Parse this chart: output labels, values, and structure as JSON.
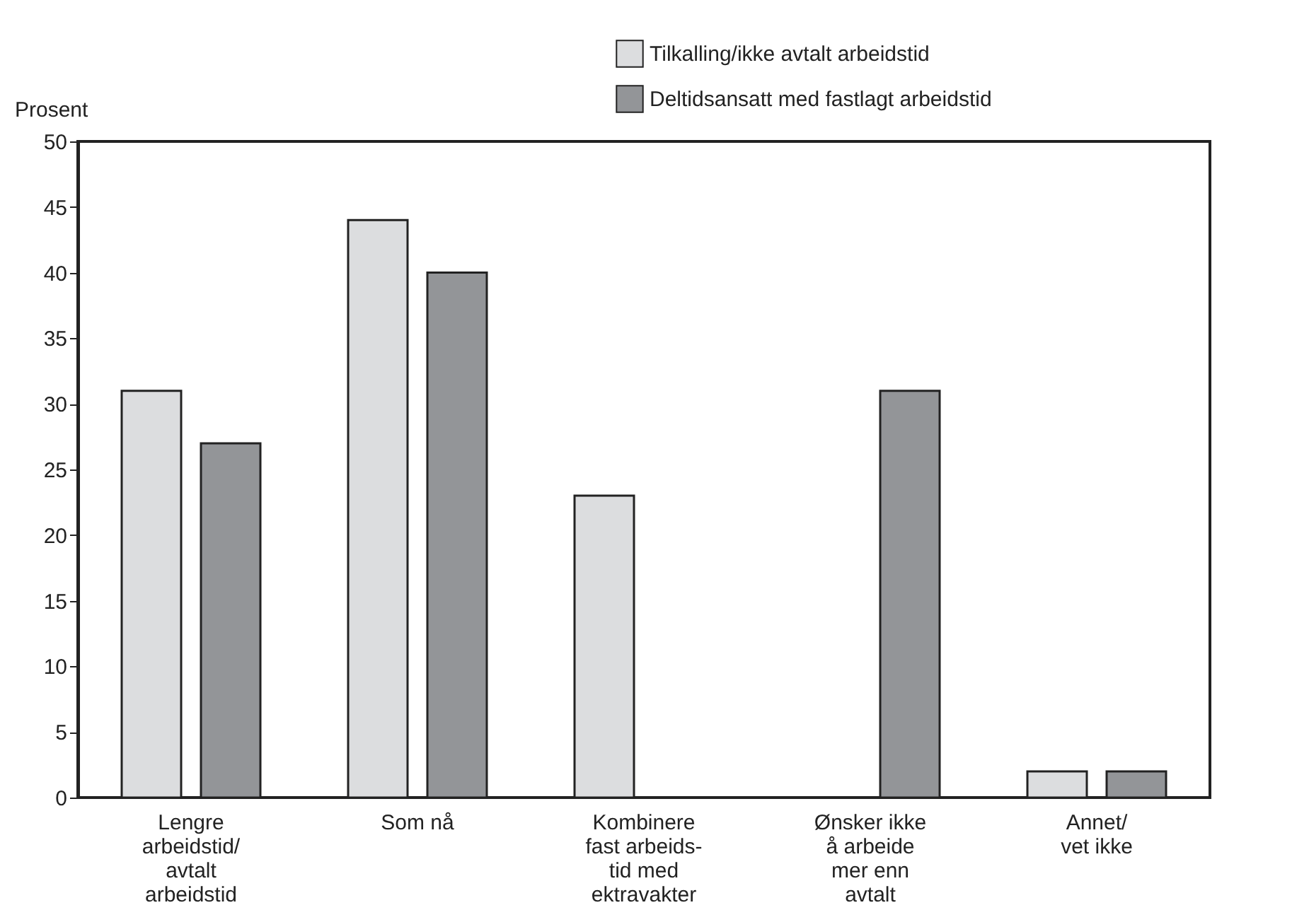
{
  "chart_data": {
    "type": "bar",
    "ylabel": "Prosent",
    "categories": [
      "Lengre\narbeidstid/\navtalt\narbeidstid",
      "Som nå",
      "Kombinere\nfast arbeids-\ntid med\nektravakter",
      "Ønsker ikke\nå arbeide\nmer enn\navtalt",
      "Annet/\nvet ikke"
    ],
    "series": [
      {
        "name": "Tilkalling/ikke avtalt arbeidstid",
        "color": "#dcdddf",
        "values": [
          31,
          44,
          23,
          null,
          2
        ]
      },
      {
        "name": "Deltidsansatt med fastlagt arbeidstid",
        "color": "#939598",
        "values": [
          27,
          40,
          null,
          31,
          2
        ]
      }
    ],
    "ylim": [
      0,
      50
    ],
    "yticks": [
      0,
      5,
      10,
      15,
      20,
      25,
      30,
      35,
      40,
      45,
      50
    ],
    "grid": false,
    "legend": "top right"
  }
}
